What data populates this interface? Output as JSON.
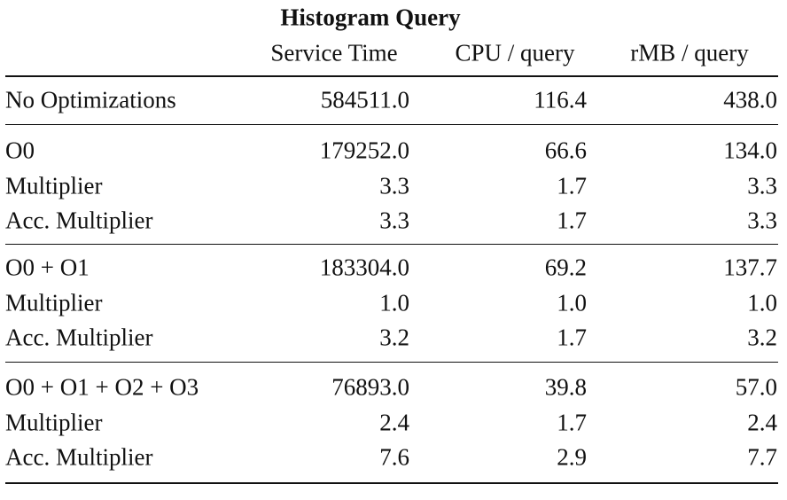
{
  "title": "Histogram Query",
  "columns": [
    "Service Time",
    "CPU / query",
    "rMB / query"
  ],
  "groups": [
    {
      "rows": [
        [
          "No Optimizations",
          "584511.0",
          "116.4",
          "438.0"
        ]
      ]
    },
    {
      "rows": [
        [
          "O0",
          "179252.0",
          "66.6",
          "134.0"
        ],
        [
          "Multiplier",
          "3.3",
          "1.7",
          "3.3"
        ],
        [
          "Acc. Multiplier",
          "3.3",
          "1.7",
          "3.3"
        ]
      ]
    },
    {
      "rows": [
        [
          "O0 + O1",
          "183304.0",
          "69.2",
          "137.7"
        ],
        [
          "Multiplier",
          "1.0",
          "1.0",
          "1.0"
        ],
        [
          "Acc. Multiplier",
          "3.2",
          "1.7",
          "3.2"
        ]
      ]
    },
    {
      "rows": [
        [
          "O0 + O1 + O2 + O3",
          "76893.0",
          "39.8",
          "57.0"
        ],
        [
          "Multiplier",
          "2.4",
          "1.7",
          "2.4"
        ],
        [
          "Acc. Multiplier",
          "7.6",
          "2.9",
          "7.7"
        ]
      ]
    }
  ]
}
